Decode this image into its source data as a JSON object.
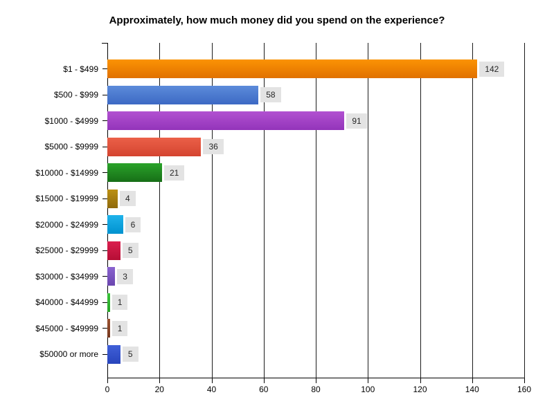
{
  "chart_data": {
    "type": "bar",
    "orientation": "horizontal",
    "title": "Approximately, how much money did you spend on the experience?",
    "categories": [
      "$1 - $499",
      "$500 - $999",
      "$1000 - $4999",
      "$5000 - $9999",
      "$10000 - $14999",
      "$15000 - $19999",
      "$20000 - $24999",
      "$25000 - $29999",
      "$30000 - $34999",
      "$40000 - $44999",
      "$45000 - $49999",
      "$50000 or more"
    ],
    "values": [
      142,
      58,
      91,
      36,
      21,
      4,
      6,
      5,
      3,
      1,
      1,
      5
    ],
    "bar_colors": [
      {
        "top": "#fb9304",
        "bottom": "#e17100"
      },
      {
        "top": "#5c8bda",
        "bottom": "#3c69c4"
      },
      {
        "top": "#b251d1",
        "bottom": "#9334ba"
      },
      {
        "top": "#eb6048",
        "bottom": "#d44430"
      },
      {
        "top": "#2aa32a",
        "bottom": "#176e17"
      },
      {
        "top": "#bc9013",
        "bottom": "#8f6a0c"
      },
      {
        "top": "#1fb3eb",
        "bottom": "#0092cf"
      },
      {
        "top": "#db1f4e",
        "bottom": "#b50e35"
      },
      {
        "top": "#8a64d0",
        "bottom": "#6a45ae"
      },
      {
        "top": "#3bc43b",
        "bottom": "#26a426"
      },
      {
        "top": "#9b5231",
        "bottom": "#76381e"
      },
      {
        "top": "#4060d8",
        "bottom": "#2845bc"
      }
    ],
    "xlabel": "",
    "ylabel": "",
    "xlim": [
      0,
      160
    ],
    "xticks": [
      0,
      20,
      40,
      60,
      80,
      100,
      120,
      140,
      160
    ],
    "grid": "vertical",
    "value_label_background": "#e3e3e3",
    "axis_color": "#000000",
    "background_color": "#ffffff"
  }
}
